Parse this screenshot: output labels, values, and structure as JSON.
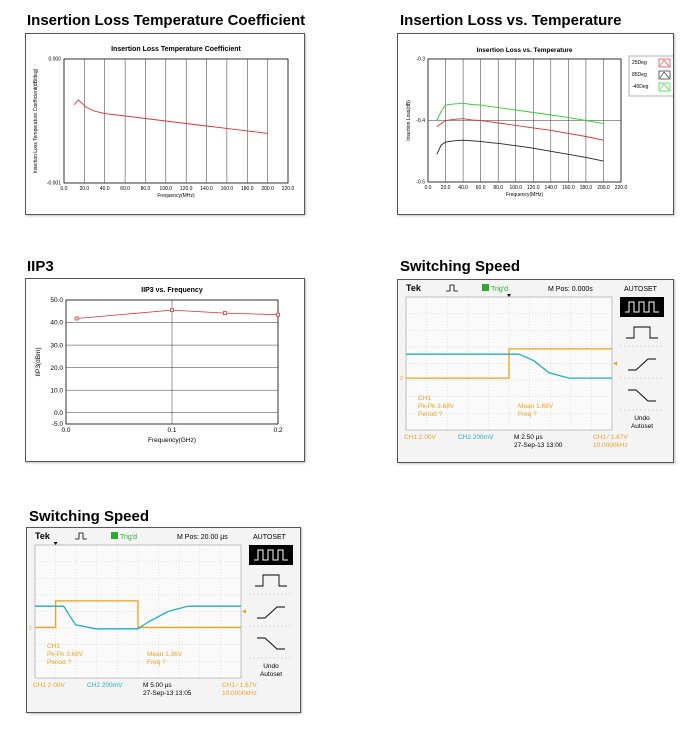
{
  "headings": {
    "ilt": "Insertion Loss Temperature Coefficient",
    "ilvt": "Insertion Loss vs. Temperature",
    "iip3": "IIP3",
    "sw1": "Switching Speed",
    "sw2": "Switching Speed"
  },
  "chart_data": [
    {
      "id": "ilt",
      "type": "line",
      "title": "Insertion Loss Temperature Coefficient",
      "xlabel": "Frequency(MHz)",
      "ylabel": "Insertion Loss Temperature Coefficient(dB/deg)",
      "xlim": [
        0,
        220
      ],
      "ylim": [
        -0.001,
        0
      ],
      "xticks": [
        "0.0",
        "20.0",
        "40.0",
        "60.0",
        "80.0",
        "100.0",
        "120.0",
        "140.0",
        "160.0",
        "180.0",
        "200.0",
        "220.0"
      ],
      "yticks": [
        "0.000",
        "-0.001"
      ],
      "series": [
        {
          "name": "coefficient",
          "color": "#e03030",
          "x": [
            10,
            14,
            18,
            22,
            30,
            40,
            60,
            80,
            100,
            120,
            140,
            160,
            180,
            200
          ],
          "y": [
            -0.00037,
            -0.00033,
            -0.00036,
            -0.00039,
            -0.00042,
            -0.00044,
            -0.00046,
            -0.00048,
            -0.0005,
            -0.00052,
            -0.00054,
            -0.00056,
            -0.00058,
            -0.0006
          ]
        }
      ]
    },
    {
      "id": "ilvt",
      "type": "line",
      "title": "Insertion Loss vs. Temperature",
      "xlabel": "Frequency(MHz)",
      "ylabel": "Insertion Loss(dB)",
      "xlim": [
        0,
        220
      ],
      "ylim": [
        -0.5,
        -0.3
      ],
      "xticks": [
        "0.0",
        "20.0",
        "40.0",
        "60.0",
        "80.0",
        "100.0",
        "120.0",
        "140.0",
        "160.0",
        "180.0",
        "200.0",
        "220.0"
      ],
      "yticks": [
        "-0.3",
        "-0.4",
        "-0.5"
      ],
      "legend": [
        "25Deg",
        "85Deg",
        "-40Deg"
      ],
      "series": [
        {
          "name": "25Deg",
          "color": "#e03030",
          "x": [
            10,
            15,
            20,
            30,
            40,
            50,
            60,
            70,
            80,
            100,
            120,
            140,
            160,
            180,
            200
          ],
          "y": [
            -0.41,
            -0.405,
            -0.4,
            -0.398,
            -0.397,
            -0.399,
            -0.4,
            -0.402,
            -0.404,
            -0.408,
            -0.412,
            -0.416,
            -0.421,
            -0.426,
            -0.432
          ]
        },
        {
          "name": "85Deg",
          "color": "#222222",
          "x": [
            10,
            15,
            20,
            30,
            40,
            50,
            60,
            70,
            80,
            100,
            120,
            140,
            160,
            180,
            200
          ],
          "y": [
            -0.455,
            -0.44,
            -0.435,
            -0.433,
            -0.432,
            -0.433,
            -0.434,
            -0.436,
            -0.437,
            -0.441,
            -0.445,
            -0.45,
            -0.455,
            -0.46,
            -0.466
          ]
        },
        {
          "name": "-40Deg",
          "color": "#30d030",
          "x": [
            10,
            15,
            20,
            30,
            40,
            50,
            60,
            70,
            80,
            100,
            120,
            140,
            160,
            180,
            200
          ],
          "y": [
            -0.4,
            -0.385,
            -0.375,
            -0.373,
            -0.372,
            -0.374,
            -0.375,
            -0.377,
            -0.379,
            -0.383,
            -0.387,
            -0.391,
            -0.395,
            -0.4,
            -0.405
          ]
        }
      ]
    },
    {
      "id": "iip3",
      "type": "line",
      "title": "IIP3 vs. Frequency",
      "xlabel": "Frequency(GHz)",
      "ylabel": "IIP3(dBm)",
      "xlim": [
        0,
        0.2
      ],
      "ylim": [
        -5,
        50
      ],
      "xticks": [
        "0.0",
        "0.1",
        "0.2"
      ],
      "yticks": [
        "50.0",
        "40.0",
        "30.0",
        "20.0",
        "10.0",
        "0.0",
        "-5.0"
      ],
      "series": [
        {
          "name": "IIP3",
          "color": "#e03030",
          "x": [
            0.01,
            0.1,
            0.15,
            0.2
          ],
          "y": [
            41.8,
            45.5,
            44.2,
            43.5
          ]
        }
      ]
    }
  ],
  "scope1": {
    "brand": "Tek",
    "trig": "Trig'd",
    "mpos": "M Pos: 0.000s",
    "autoset": "AUTOSET",
    "ch1_label": "CH1",
    "pkpk": "Pk-Pk 3.68V",
    "period": "Period ?",
    "mean": "Mean 1.68V",
    "freq": "Freq ?",
    "ch1_scale": "CH1  2.00V",
    "ch2_scale": "CH2  200mV",
    "m_time": "M 2.50 µs",
    "date": "27-Sep-13 13:00",
    "trig_ch": "CH1  ∕  1.67V",
    "trig_freq": "10.0000kHz",
    "undo": "Undo Autoset",
    "ch2_marker": "2"
  },
  "scope2": {
    "brand": "Tek",
    "trig": "Trig'd",
    "mpos": "M Pos: 20.00 µs",
    "autoset": "AUTOSET",
    "ch1_label": "CH1",
    "pkpk": "Pk-Pk 3.68V",
    "period": "Period ?",
    "mean": "Mean 1.36V",
    "freq": "Freq ?",
    "ch1_scale": "CH1  2.00V",
    "ch2_scale": "CH2  200mV",
    "m_time": "M 5.00 µs",
    "date": "27-Sep-13 13:05",
    "trig_ch": "CH1  ∕  1.67V",
    "trig_freq": "10.0000kHz",
    "undo": "Undo Autoset",
    "ch2_marker": "2"
  }
}
